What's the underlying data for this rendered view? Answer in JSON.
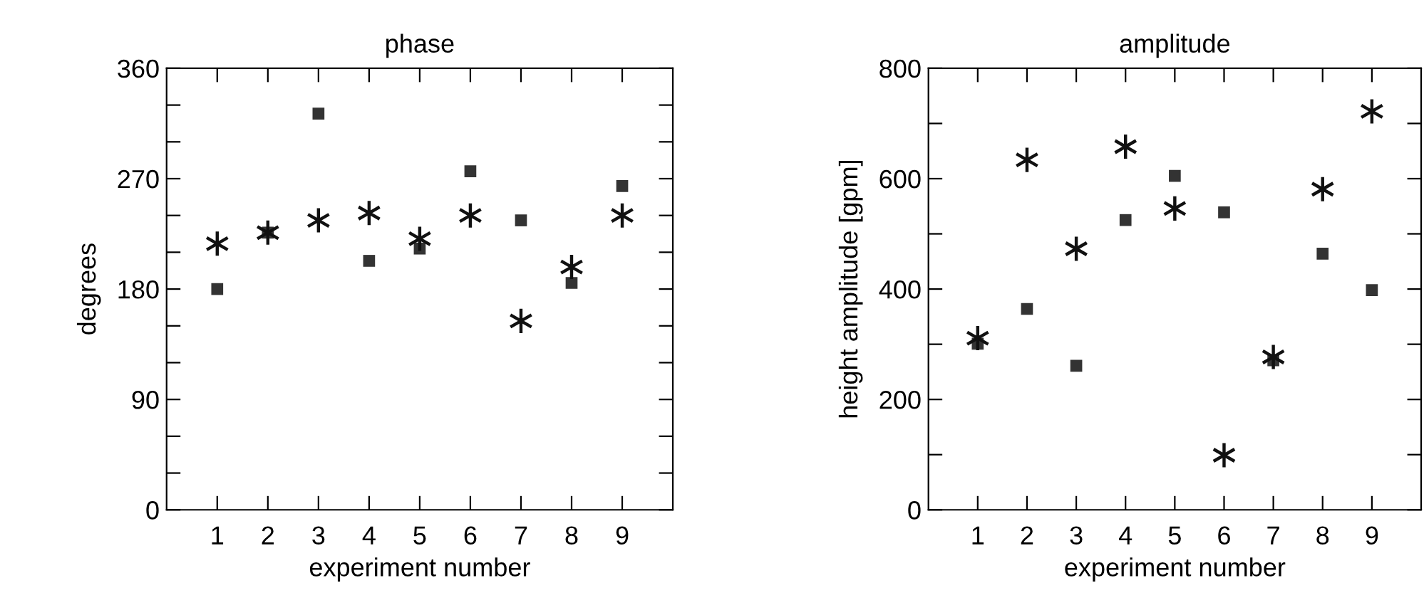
{
  "chart_data": [
    {
      "type": "scatter",
      "title": "phase",
      "xlabel": "experiment number",
      "ylabel": "degrees",
      "x": [
        1,
        2,
        3,
        4,
        5,
        6,
        7,
        8,
        9
      ],
      "xlim": [
        0,
        10
      ],
      "xticks": [
        1,
        2,
        3,
        4,
        5,
        6,
        7,
        8,
        9
      ],
      "ylim": [
        0,
        360
      ],
      "yticks": [
        0,
        {
          "value": 30,
          "label": null
        },
        {
          "value": 60,
          "label": null
        },
        90,
        {
          "value": 120,
          "label": null
        },
        {
          "value": 150,
          "label": null
        },
        180,
        {
          "value": 210,
          "label": null
        },
        {
          "value": 240,
          "label": null
        },
        270,
        {
          "value": 300,
          "label": null
        },
        {
          "value": 330,
          "label": null
        },
        360
      ],
      "grid": false,
      "legend": false,
      "series": [
        {
          "color": "#333333",
          "marker": "square",
          "values": [
            180,
            226,
            323,
            203,
            213,
            276,
            236,
            185,
            264
          ]
        },
        {
          "color": "#111111",
          "marker": "cross",
          "values": [
            217,
            226,
            236,
            242,
            221,
            240,
            154,
            198,
            240
          ]
        }
      ]
    },
    {
      "type": "scatter",
      "title": "amplitude",
      "xlabel": "experiment number",
      "ylabel": "height amplitude [gpm]",
      "x": [
        1,
        2,
        3,
        4,
        5,
        6,
        7,
        8,
        9
      ],
      "xlim": [
        0,
        10
      ],
      "xticks": [
        1,
        2,
        3,
        4,
        5,
        6,
        7,
        8,
        9
      ],
      "ylim": [
        0,
        800
      ],
      "yticks": [
        0,
        {
          "value": 100,
          "label": null
        },
        200,
        {
          "value": 300,
          "label": null
        },
        400,
        {
          "value": 500,
          "label": null
        },
        600,
        {
          "value": 700,
          "label": null
        },
        800
      ],
      "grid": false,
      "legend": false,
      "series": [
        {
          "color": "#333333",
          "marker": "square",
          "values": [
            301,
            364,
            261,
            525,
            605,
            539,
            271,
            464,
            398
          ]
        },
        {
          "color": "#111111",
          "marker": "cross",
          "values": [
            311,
            634,
            473,
            658,
            546,
            99,
            277,
            581,
            722
          ]
        }
      ]
    }
  ]
}
